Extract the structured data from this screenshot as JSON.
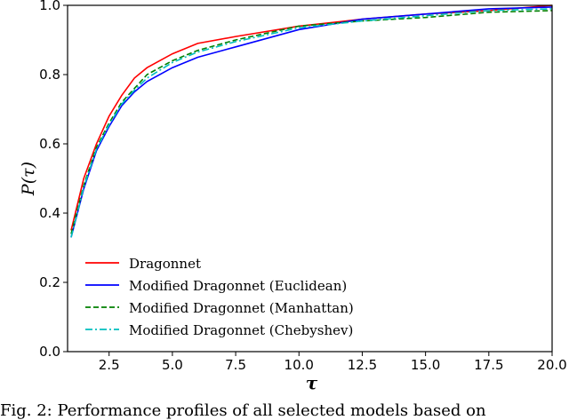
{
  "chart_data": {
    "type": "line",
    "title": "",
    "xlabel": "τ",
    "ylabel": "P(τ)",
    "xlim": [
      1.0,
      20.0
    ],
    "ylim": [
      0.0,
      1.0
    ],
    "xticks": [
      "2.5",
      "5.0",
      "7.5",
      "10.0",
      "12.5",
      "15.0",
      "17.5",
      "20.0"
    ],
    "xtick_values": [
      2.5,
      5.0,
      7.5,
      10.0,
      12.5,
      15.0,
      17.5,
      20.0
    ],
    "yticks": [
      "0.0",
      "0.2",
      "0.4",
      "0.6",
      "0.8",
      "1.0"
    ],
    "ytick_values": [
      0.0,
      0.2,
      0.4,
      0.6,
      0.8,
      1.0
    ],
    "grid": false,
    "legend_position": "bottom-left",
    "series": [
      {
        "name": "Dragonnet",
        "color": "#ff0000",
        "style": "solid",
        "x": [
          1,
          1.5,
          2,
          2.5,
          3,
          3.5,
          4,
          5,
          6,
          7.5,
          10,
          12.5,
          15,
          17.5,
          20
        ],
        "y": [
          0.35,
          0.5,
          0.6,
          0.68,
          0.74,
          0.79,
          0.82,
          0.86,
          0.89,
          0.91,
          0.94,
          0.96,
          0.975,
          0.985,
          1.0
        ]
      },
      {
        "name": "Modified Dragonnet (Euclidean)",
        "color": "#0000ff",
        "style": "solid",
        "x": [
          1,
          1.5,
          2,
          2.5,
          3,
          3.5,
          4,
          5,
          6,
          7.5,
          10,
          12.5,
          15,
          17.5,
          20
        ],
        "y": [
          0.33,
          0.47,
          0.58,
          0.65,
          0.71,
          0.75,
          0.78,
          0.82,
          0.85,
          0.88,
          0.93,
          0.96,
          0.975,
          0.99,
          0.995
        ]
      },
      {
        "name": "Modified Dragonnet (Manhattan)",
        "color": "#008000",
        "style": "dashed",
        "x": [
          1,
          1.5,
          2,
          2.5,
          3,
          3.5,
          4,
          5,
          6,
          7.5,
          10,
          12.5,
          15,
          17.5,
          20
        ],
        "y": [
          0.34,
          0.48,
          0.59,
          0.66,
          0.72,
          0.76,
          0.8,
          0.84,
          0.87,
          0.9,
          0.94,
          0.955,
          0.965,
          0.98,
          0.985
        ]
      },
      {
        "name": "Modified Dragonnet (Chebyshev)",
        "color": "#00bfbf",
        "style": "dashdot",
        "x": [
          1,
          1.5,
          2,
          2.5,
          3,
          3.5,
          4,
          5,
          6,
          7.5,
          10,
          12.5,
          15,
          17.5,
          20
        ],
        "y": [
          0.33,
          0.475,
          0.585,
          0.655,
          0.715,
          0.755,
          0.79,
          0.835,
          0.865,
          0.895,
          0.935,
          0.955,
          0.97,
          0.985,
          0.99
        ]
      }
    ]
  },
  "caption": "Fig. 2: Performance profiles of all selected models based on"
}
